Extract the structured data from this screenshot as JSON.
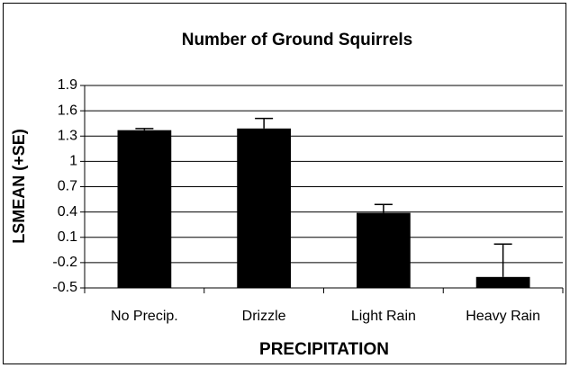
{
  "chart_data": {
    "type": "bar",
    "title": "Number of Ground Squirrels",
    "x_label": "PRECIPITATION",
    "y_label": "LSMEAN (+SE)",
    "categories": [
      "No Precip.",
      "Drizzle",
      "Light Rain",
      "Heavy Rain"
    ],
    "values": [
      1.37,
      1.39,
      0.39,
      -0.37
    ],
    "errors": [
      0.02,
      0.12,
      0.1,
      0.39
    ],
    "color": "#000000",
    "ylim": [
      -0.5,
      1.9
    ],
    "yticks": [
      -0.5,
      -0.2,
      0.1,
      0.4,
      0.7,
      1,
      1.3,
      1.6,
      1.9
    ],
    "grid": true
  }
}
